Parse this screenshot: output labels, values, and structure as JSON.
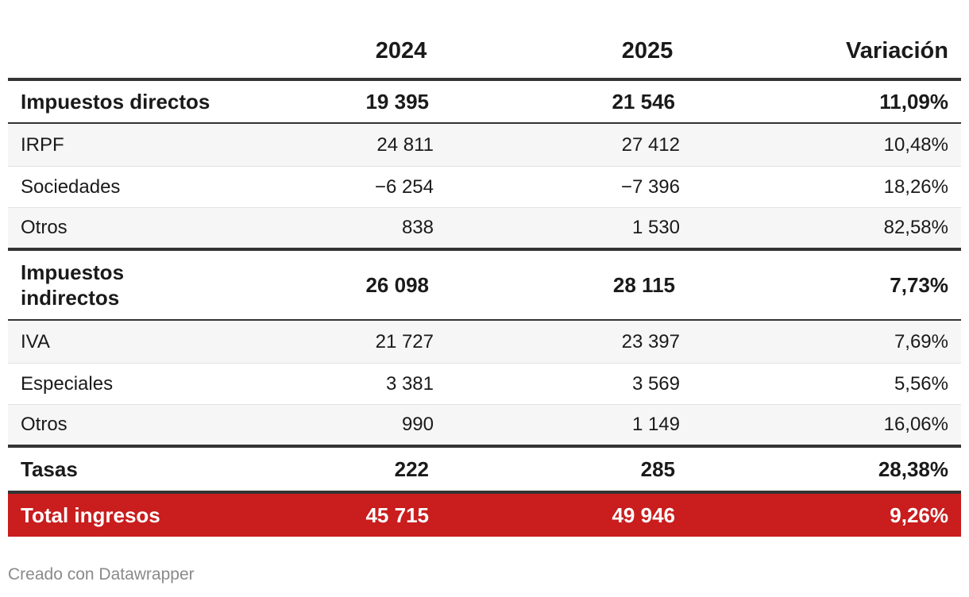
{
  "table": {
    "columns": [
      "",
      "2024",
      "2025",
      "Variación"
    ],
    "rows": [
      {
        "label": "Impuestos directos",
        "y2024": "19 395",
        "y2025": "21 546",
        "var": "11,09%"
      },
      {
        "label": "IRPF",
        "y2024": "24 811",
        "y2025": "27 412",
        "var": "10,48%"
      },
      {
        "label": "Sociedades",
        "y2024": "−6 254",
        "y2025": "−7 396",
        "var": "18,26%"
      },
      {
        "label": "Otros",
        "y2024": "838",
        "y2025": "1 530",
        "var": "82,58%"
      },
      {
        "label": "Impuestos indirectos",
        "label_line1": "Impuestos",
        "label_line2": "indirectos",
        "y2024": "26 098",
        "y2025": "28 115",
        "var": "7,73%"
      },
      {
        "label": "IVA",
        "y2024": "21 727",
        "y2025": "23 397",
        "var": "7,69%"
      },
      {
        "label": "Especiales",
        "y2024": "3 381",
        "y2025": "3 569",
        "var": "5,56%"
      },
      {
        "label": "Otros",
        "y2024": "990",
        "y2025": "1 149",
        "var": "16,06%"
      },
      {
        "label": "Tasas",
        "y2024": "222",
        "y2025": "285",
        "var": "28,38%"
      },
      {
        "label": "Total ingresos",
        "y2024": "45 715",
        "y2025": "49 946",
        "var": "9,26%"
      }
    ]
  },
  "footer": {
    "text": "Creado con Datawrapper"
  },
  "colors": {
    "total_background": "#c91d1e",
    "rule": "#333333",
    "stripe": "#f6f6f6",
    "footer_text": "#8a8a8a"
  }
}
